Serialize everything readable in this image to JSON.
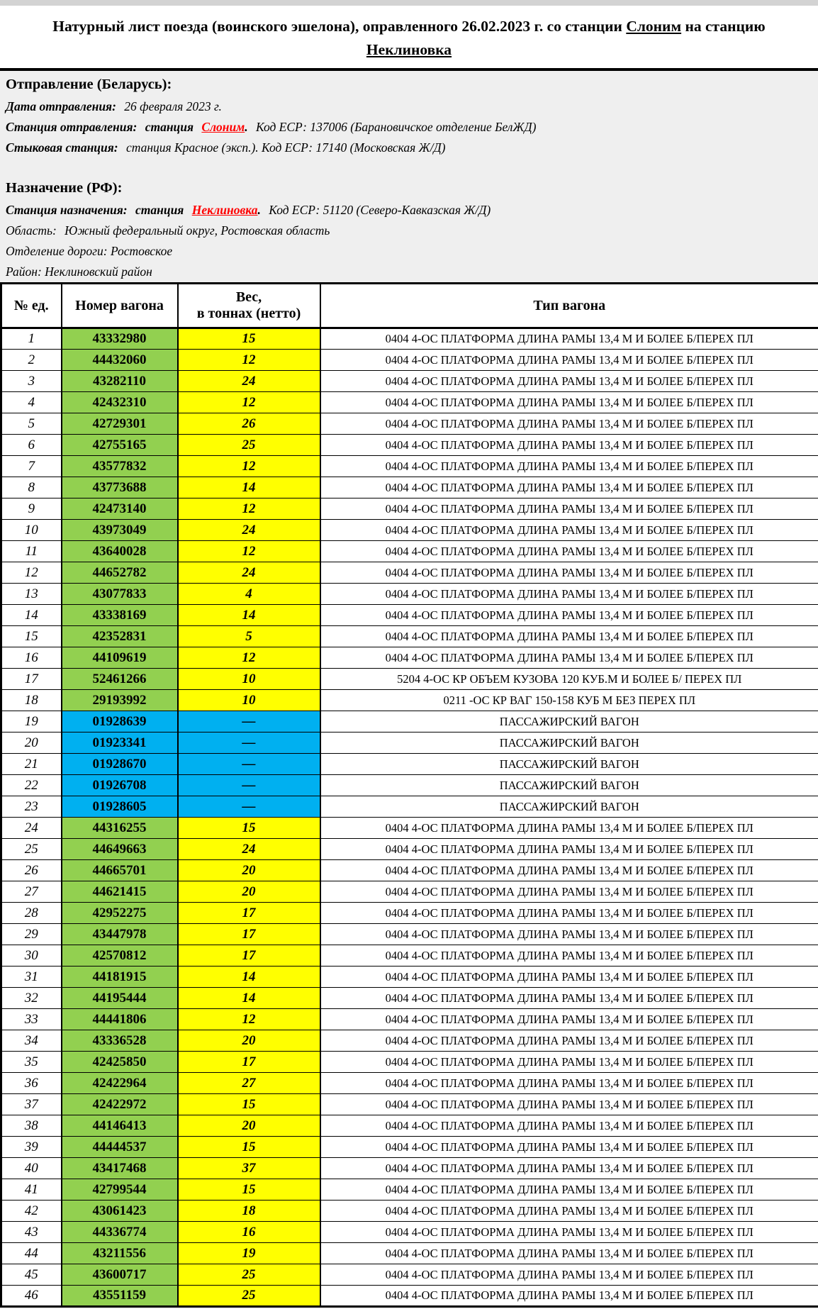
{
  "title": {
    "line1_prefix": "Натурный лист поезда (воинского эшелона), оправленного 26.02.2023 г. со станции ",
    "origin_station": "Слоним",
    "line1_suffix": "  на станцию",
    "destination_station": "Неклиновка"
  },
  "departure": {
    "heading": "Отправление (Беларусь):",
    "date_label": "Дата отправления:",
    "date_value": "26 февраля 2023 г.",
    "station_label": "Станция отправления:",
    "station_word": "станция",
    "station_name": "Слоним",
    "station_dot": ".",
    "station_code": "Код ЕСР: 137006 (Барановичское отделение БелЖД)",
    "junction_label": "Стыковая станция:",
    "junction_value": "станция Красное (эксп.). Код ЕСР: 17140 (Московская Ж/Д)"
  },
  "destination": {
    "heading": "Назначение (РФ):",
    "station_label": "Станция назначения:",
    "station_word": "станция",
    "station_name": "Неклиновка",
    "station_dot": ".",
    "station_code": "Код ЕСР: 51120 (Северо-Кавказская Ж/Д)",
    "region_label": "Область:",
    "region_value": "Южный федеральный округ, Ростовская область",
    "division_label": "Отделение дороги:",
    "division_value": "Ростовское",
    "district_label": "Район:",
    "district_value": "Неклиновский район"
  },
  "table": {
    "headers": {
      "num": "№ ед.",
      "wagon": "Номер вагона",
      "weight_line1": "Вес,",
      "weight_line2": "в тоннах (нетто)",
      "type": "Тип вагона"
    },
    "colors": {
      "green": "#92d050",
      "yellow": "#ffff00",
      "blue": "#00b0f0",
      "link_red": "#ff0000"
    },
    "rows": [
      {
        "num": "1",
        "wagon": "43332980",
        "weight": "15",
        "style": "green",
        "type": "0404 4-ОС ПЛАТФОРМА ДЛИНА РАМЫ 13,4 М И БОЛЕЕ Б/ПЕРЕХ ПЛ"
      },
      {
        "num": "2",
        "wagon": "44432060",
        "weight": "12",
        "style": "green",
        "type": "0404 4-ОС ПЛАТФОРМА ДЛИНА РАМЫ 13,4 М И БОЛЕЕ Б/ПЕРЕХ ПЛ"
      },
      {
        "num": "3",
        "wagon": "43282110",
        "weight": "24",
        "style": "green",
        "type": "0404 4-ОС ПЛАТФОРМА ДЛИНА РАМЫ 13,4 М И БОЛЕЕ Б/ПЕРЕХ ПЛ"
      },
      {
        "num": "4",
        "wagon": "42432310",
        "weight": "12",
        "style": "green",
        "type": "0404 4-ОС ПЛАТФОРМА ДЛИНА РАМЫ 13,4 М И БОЛЕЕ Б/ПЕРЕХ ПЛ"
      },
      {
        "num": "5",
        "wagon": "42729301",
        "weight": "26",
        "style": "green",
        "type": "0404 4-ОС ПЛАТФОРМА ДЛИНА РАМЫ 13,4 М И БОЛЕЕ Б/ПЕРЕХ ПЛ"
      },
      {
        "num": "6",
        "wagon": "42755165",
        "weight": "25",
        "style": "green",
        "type": "0404 4-ОС ПЛАТФОРМА ДЛИНА РАМЫ 13,4 М И БОЛЕЕ Б/ПЕРЕХ ПЛ"
      },
      {
        "num": "7",
        "wagon": "43577832",
        "weight": "12",
        "style": "green",
        "type": "0404 4-ОС ПЛАТФОРМА ДЛИНА РАМЫ 13,4 М И БОЛЕЕ Б/ПЕРЕХ ПЛ"
      },
      {
        "num": "8",
        "wagon": "43773688",
        "weight": "14",
        "style": "green",
        "type": "0404 4-ОС ПЛАТФОРМА ДЛИНА РАМЫ 13,4 М И БОЛЕЕ Б/ПЕРЕХ ПЛ"
      },
      {
        "num": "9",
        "wagon": "42473140",
        "weight": "12",
        "style": "green",
        "type": "0404 4-ОС ПЛАТФОРМА ДЛИНА РАМЫ 13,4 М И БОЛЕЕ Б/ПЕРЕХ ПЛ"
      },
      {
        "num": "10",
        "wagon": "43973049",
        "weight": "24",
        "style": "green",
        "type": "0404 4-ОС ПЛАТФОРМА ДЛИНА РАМЫ 13,4 М И БОЛЕЕ Б/ПЕРЕХ ПЛ"
      },
      {
        "num": "11",
        "wagon": "43640028",
        "weight": "12",
        "style": "green",
        "type": "0404 4-ОС ПЛАТФОРМА ДЛИНА РАМЫ 13,4 М И БОЛЕЕ Б/ПЕРЕХ ПЛ"
      },
      {
        "num": "12",
        "wagon": "44652782",
        "weight": "24",
        "style": "green",
        "type": "0404 4-ОС ПЛАТФОРМА ДЛИНА РАМЫ 13,4 М И БОЛЕЕ Б/ПЕРЕХ ПЛ"
      },
      {
        "num": "13",
        "wagon": "43077833",
        "weight": "4",
        "style": "green",
        "type": "0404 4-ОС ПЛАТФОРМА ДЛИНА РАМЫ 13,4 М И БОЛЕЕ Б/ПЕРЕХ ПЛ"
      },
      {
        "num": "14",
        "wagon": "43338169",
        "weight": "14",
        "style": "green",
        "type": "0404 4-ОС ПЛАТФОРМА ДЛИНА РАМЫ 13,4 М И БОЛЕЕ Б/ПЕРЕХ ПЛ"
      },
      {
        "num": "15",
        "wagon": "42352831",
        "weight": "5",
        "style": "green",
        "type": "0404 4-ОС ПЛАТФОРМА ДЛИНА РАМЫ 13,4 М И БОЛЕЕ Б/ПЕРЕХ ПЛ"
      },
      {
        "num": "16",
        "wagon": "44109619",
        "weight": "12",
        "style": "green",
        "type": "0404 4-ОС ПЛАТФОРМА ДЛИНА РАМЫ 13,4 М И БОЛЕЕ Б/ПЕРЕХ ПЛ"
      },
      {
        "num": "17",
        "wagon": "52461266",
        "weight": "10",
        "style": "green",
        "type": "5204 4-ОС КР ОБЪЕМ КУЗОВА 120 КУБ.М И БОЛЕЕ Б/ ПЕРЕХ ПЛ"
      },
      {
        "num": "18",
        "wagon": "29193992",
        "weight": "10",
        "style": "green",
        "type": "0211 -ОС КР ВАГ 150-158 КУБ М БЕЗ ПЕРЕХ ПЛ"
      },
      {
        "num": "19",
        "wagon": "01928639",
        "weight": "—",
        "style": "blue",
        "type": "ПАССАЖИРСКИЙ ВАГОН"
      },
      {
        "num": "20",
        "wagon": "01923341",
        "weight": "—",
        "style": "blue",
        "type": "ПАССАЖИРСКИЙ ВАГОН"
      },
      {
        "num": "21",
        "wagon": "01928670",
        "weight": "—",
        "style": "blue",
        "type": "ПАССАЖИРСКИЙ ВАГОН"
      },
      {
        "num": "22",
        "wagon": "01926708",
        "weight": "—",
        "style": "blue",
        "type": "ПАССАЖИРСКИЙ ВАГОН"
      },
      {
        "num": "23",
        "wagon": "01928605",
        "weight": "—",
        "style": "blue",
        "type": "ПАССАЖИРСКИЙ ВАГОН"
      },
      {
        "num": "24",
        "wagon": "44316255",
        "weight": "15",
        "style": "green",
        "type": "0404 4-ОС ПЛАТФОРМА ДЛИНА РАМЫ 13,4 М И БОЛЕЕ Б/ПЕРЕХ ПЛ"
      },
      {
        "num": "25",
        "wagon": "44649663",
        "weight": "24",
        "style": "green",
        "type": "0404 4-ОС ПЛАТФОРМА ДЛИНА РАМЫ 13,4 М И БОЛЕЕ Б/ПЕРЕХ ПЛ"
      },
      {
        "num": "26",
        "wagon": "44665701",
        "weight": "20",
        "style": "green",
        "type": "0404 4-ОС ПЛАТФОРМА ДЛИНА РАМЫ 13,4 М И БОЛЕЕ Б/ПЕРЕХ ПЛ"
      },
      {
        "num": "27",
        "wagon": "44621415",
        "weight": "20",
        "style": "green",
        "type": "0404 4-ОС ПЛАТФОРМА ДЛИНА РАМЫ 13,4 М И БОЛЕЕ Б/ПЕРЕХ ПЛ"
      },
      {
        "num": "28",
        "wagon": "42952275",
        "weight": "17",
        "style": "green",
        "type": "0404 4-ОС ПЛАТФОРМА ДЛИНА РАМЫ 13,4 М И БОЛЕЕ Б/ПЕРЕХ ПЛ"
      },
      {
        "num": "29",
        "wagon": "43447978",
        "weight": "17",
        "style": "green",
        "type": "0404 4-ОС ПЛАТФОРМА ДЛИНА РАМЫ 13,4 М И БОЛЕЕ Б/ПЕРЕХ ПЛ"
      },
      {
        "num": "30",
        "wagon": "42570812",
        "weight": "17",
        "style": "green",
        "type": "0404 4-ОС ПЛАТФОРМА ДЛИНА РАМЫ 13,4 М И БОЛЕЕ Б/ПЕРЕХ ПЛ"
      },
      {
        "num": "31",
        "wagon": "44181915",
        "weight": "14",
        "style": "green",
        "type": "0404 4-ОС ПЛАТФОРМА ДЛИНА РАМЫ 13,4 М И БОЛЕЕ Б/ПЕРЕХ ПЛ"
      },
      {
        "num": "32",
        "wagon": "44195444",
        "weight": "14",
        "style": "green",
        "type": "0404 4-ОС ПЛАТФОРМА ДЛИНА РАМЫ 13,4 М И БОЛЕЕ Б/ПЕРЕХ ПЛ"
      },
      {
        "num": "33",
        "wagon": "44441806",
        "weight": "12",
        "style": "green",
        "type": "0404 4-ОС ПЛАТФОРМА ДЛИНА РАМЫ 13,4 М И БОЛЕЕ Б/ПЕРЕХ ПЛ"
      },
      {
        "num": "34",
        "wagon": "43336528",
        "weight": "20",
        "style": "green",
        "type": "0404 4-ОС ПЛАТФОРМА ДЛИНА РАМЫ 13,4 М И БОЛЕЕ Б/ПЕРЕХ ПЛ"
      },
      {
        "num": "35",
        "wagon": "42425850",
        "weight": "17",
        "style": "green",
        "type": "0404 4-ОС ПЛАТФОРМА ДЛИНА РАМЫ 13,4 М И БОЛЕЕ Б/ПЕРЕХ ПЛ"
      },
      {
        "num": "36",
        "wagon": "42422964",
        "weight": "27",
        "style": "green",
        "type": "0404 4-ОС ПЛАТФОРМА ДЛИНА РАМЫ 13,4 М И БОЛЕЕ Б/ПЕРЕХ ПЛ"
      },
      {
        "num": "37",
        "wagon": "42422972",
        "weight": "15",
        "style": "green",
        "type": "0404 4-ОС ПЛАТФОРМА ДЛИНА РАМЫ 13,4 М И БОЛЕЕ Б/ПЕРЕХ ПЛ"
      },
      {
        "num": "38",
        "wagon": "44146413",
        "weight": "20",
        "style": "green",
        "type": "0404 4-ОС ПЛАТФОРМА ДЛИНА РАМЫ 13,4 М И БОЛЕЕ Б/ПЕРЕХ ПЛ"
      },
      {
        "num": "39",
        "wagon": "44444537",
        "weight": "15",
        "style": "green",
        "type": "0404 4-ОС ПЛАТФОРМА ДЛИНА РАМЫ 13,4 М И БОЛЕЕ Б/ПЕРЕХ ПЛ"
      },
      {
        "num": "40",
        "wagon": "43417468",
        "weight": "37",
        "style": "green",
        "type": "0404 4-ОС ПЛАТФОРМА ДЛИНА РАМЫ 13,4 М И БОЛЕЕ Б/ПЕРЕХ ПЛ"
      },
      {
        "num": "41",
        "wagon": "42799544",
        "weight": "15",
        "style": "green",
        "type": "0404 4-ОС ПЛАТФОРМА ДЛИНА РАМЫ 13,4 М И БОЛЕЕ Б/ПЕРЕХ ПЛ"
      },
      {
        "num": "42",
        "wagon": "43061423",
        "weight": "18",
        "style": "green",
        "type": "0404 4-ОС ПЛАТФОРМА ДЛИНА РАМЫ 13,4 М И БОЛЕЕ Б/ПЕРЕХ ПЛ"
      },
      {
        "num": "43",
        "wagon": "44336774",
        "weight": "16",
        "style": "green",
        "type": "0404 4-ОС ПЛАТФОРМА ДЛИНА РАМЫ 13,4 М И БОЛЕЕ Б/ПЕРЕХ ПЛ"
      },
      {
        "num": "44",
        "wagon": "43211556",
        "weight": "19",
        "style": "green",
        "type": "0404 4-ОС ПЛАТФОРМА ДЛИНА РАМЫ 13,4 М И БОЛЕЕ Б/ПЕРЕХ ПЛ"
      },
      {
        "num": "45",
        "wagon": "43600717",
        "weight": "25",
        "style": "green",
        "type": "0404 4-ОС ПЛАТФОРМА ДЛИНА РАМЫ 13,4 М И БОЛЕЕ Б/ПЕРЕХ ПЛ"
      },
      {
        "num": "46",
        "wagon": "43551159",
        "weight": "25",
        "style": "green",
        "type": "0404 4-ОС ПЛАТФОРМА ДЛИНА РАМЫ 13,4 М И БОЛЕЕ Б/ПЕРЕХ ПЛ"
      }
    ]
  }
}
